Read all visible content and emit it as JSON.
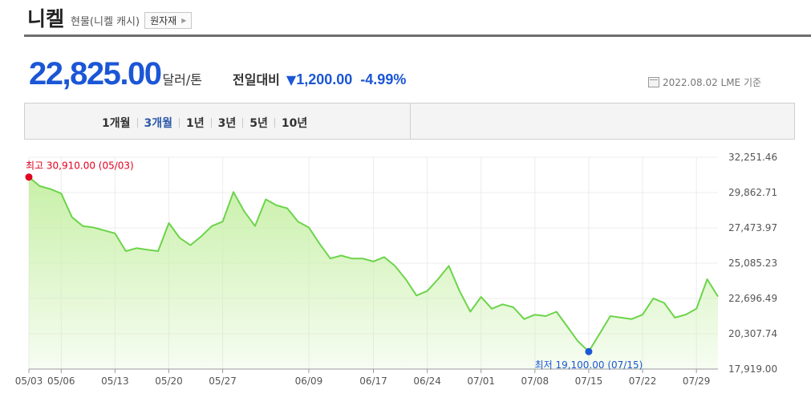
{
  "header": {
    "title": "니켈",
    "subtitle": "현물(니켈 캐시)",
    "button_label": "원자재"
  },
  "quote": {
    "price": "22,825.00",
    "unit": "달러/톤",
    "change_label": "전일대비",
    "change": "1,200.00",
    "change_pct": "-4.99%",
    "date_note": "2022.08.02 LME 기준"
  },
  "periods": [
    {
      "label": "1개월",
      "active": false
    },
    {
      "label": "3개월",
      "active": true
    },
    {
      "label": "1년",
      "active": false
    },
    {
      "label": "3년",
      "active": false
    },
    {
      "label": "5년",
      "active": false
    },
    {
      "label": "10년",
      "active": false
    }
  ],
  "colors": {
    "accent_blue": "#1b56d6",
    "line_green": "#6cd44a",
    "fill_green": "#c8f0a8",
    "high_red": "#e1001f",
    "low_blue": "#1b56d6"
  },
  "chart_data": {
    "type": "area",
    "y_ticks": [
      "32,251.46",
      "29,862.71",
      "27,473.97",
      "25,085.23",
      "22,696.49",
      "20,307.74",
      "17,919.00"
    ],
    "ylim": [
      17919.0,
      32251.46
    ],
    "x_ticks": [
      "05/03",
      "05/06",
      "05/13",
      "05/20",
      "05/27",
      "06/09",
      "06/17",
      "06/24",
      "07/01",
      "07/08",
      "07/15",
      "07/22",
      "07/29"
    ],
    "x_tick_index": [
      0,
      3,
      8,
      13,
      18,
      26,
      32,
      37,
      42,
      47,
      52,
      57,
      62
    ],
    "high_label": "최고 30,910.00 (05/03)",
    "high_index": 0,
    "low_label": "최저 19,100.00 (07/15)",
    "low_index": 52,
    "values": [
      30910,
      30300,
      30100,
      29800,
      28200,
      27600,
      27500,
      27300,
      27100,
      25900,
      26100,
      26000,
      25900,
      27800,
      26800,
      26300,
      26900,
      27600,
      27900,
      29900,
      28600,
      27600,
      29400,
      29000,
      28800,
      27900,
      27500,
      26400,
      25400,
      25600,
      25400,
      25400,
      25200,
      25500,
      24900,
      24000,
      22900,
      23200,
      24000,
      24900,
      23200,
      21800,
      22800,
      22000,
      22300,
      22100,
      21300,
      21600,
      21500,
      21800,
      20800,
      19800,
      19100,
      20300,
      21500,
      21400,
      21300,
      21600,
      22700,
      22400,
      21400,
      21600,
      22000,
      24000,
      22825
    ]
  }
}
